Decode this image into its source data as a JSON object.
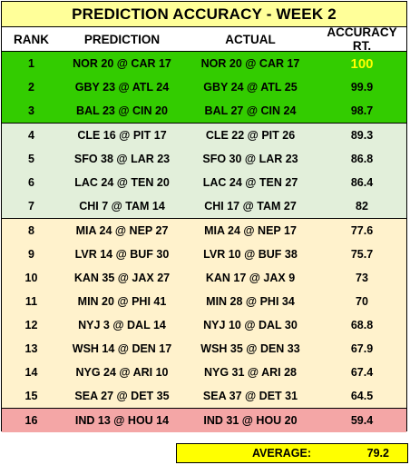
{
  "title": "PREDICTION ACCURACY - WEEK 2",
  "headers": {
    "rank": "RANK",
    "prediction": "PREDICTION",
    "actual": "ACTUAL",
    "accuracy": "ACCURACY RT."
  },
  "colors": {
    "title_bg": "#ffff99",
    "top_tier": "#33cc00",
    "good_tier": "#e2efda",
    "mid_tier": "#fff2cc",
    "low_tier": "#f4a6a6",
    "average_bg": "#ffff00",
    "highlight_text": "#ffff00"
  },
  "rows": [
    {
      "rank": "1",
      "prediction": "NOR 20  @  CAR 17",
      "actual": "NOR 20  @  CAR 17",
      "accuracy": "100"
    },
    {
      "rank": "2",
      "prediction": "GBY 23  @  ATL 24",
      "actual": "GBY 24  @  ATL 25",
      "accuracy": "99.9"
    },
    {
      "rank": "3",
      "prediction": "BAL 23  @  CIN 20",
      "actual": "BAL 27  @  CIN 24",
      "accuracy": "98.7"
    },
    {
      "rank": "4",
      "prediction": "CLE 16  @  PIT 17",
      "actual": "CLE 22  @  PIT 26",
      "accuracy": "89.3"
    },
    {
      "rank": "5",
      "prediction": "SFO 38  @  LAR 23",
      "actual": "SFO 30  @  LAR 23",
      "accuracy": "86.8"
    },
    {
      "rank": "6",
      "prediction": "LAC 24  @  TEN 20",
      "actual": "LAC 24  @  TEN 27",
      "accuracy": "86.4"
    },
    {
      "rank": "7",
      "prediction": "CHI 7  @  TAM 14",
      "actual": "CHI 17  @  TAM 27",
      "accuracy": "82"
    },
    {
      "rank": "8",
      "prediction": "MIA 24  @  NEP 27",
      "actual": "MIA 24  @  NEP 17",
      "accuracy": "77.6"
    },
    {
      "rank": "9",
      "prediction": "LVR 14  @  BUF 30",
      "actual": "LVR 10  @  BUF 38",
      "accuracy": "75.7"
    },
    {
      "rank": "10",
      "prediction": "KAN 35  @  JAX 27",
      "actual": "KAN 17  @  JAX 9",
      "accuracy": "73"
    },
    {
      "rank": "11",
      "prediction": "MIN 20  @  PHI 41",
      "actual": "MIN 28  @  PHI 34",
      "accuracy": "70"
    },
    {
      "rank": "12",
      "prediction": "NYJ 3  @  DAL 14",
      "actual": "NYJ 10  @  DAL 30",
      "accuracy": "68.8"
    },
    {
      "rank": "13",
      "prediction": "WSH 14  @  DEN 17",
      "actual": "WSH 35  @  DEN 33",
      "accuracy": "67.9"
    },
    {
      "rank": "14",
      "prediction": "NYG 24  @  ARI 10",
      "actual": "NYG 31  @  ARI 28",
      "accuracy": "67.4"
    },
    {
      "rank": "15",
      "prediction": "SEA 27  @  DET 35",
      "actual": "SEA 37  @  DET 31",
      "accuracy": "64.5"
    },
    {
      "rank": "16",
      "prediction": "IND 13  @  HOU 14",
      "actual": "IND 31  @  HOU 20",
      "accuracy": "59.4"
    }
  ],
  "average": {
    "label": "AVERAGE:",
    "value": "79.2"
  }
}
